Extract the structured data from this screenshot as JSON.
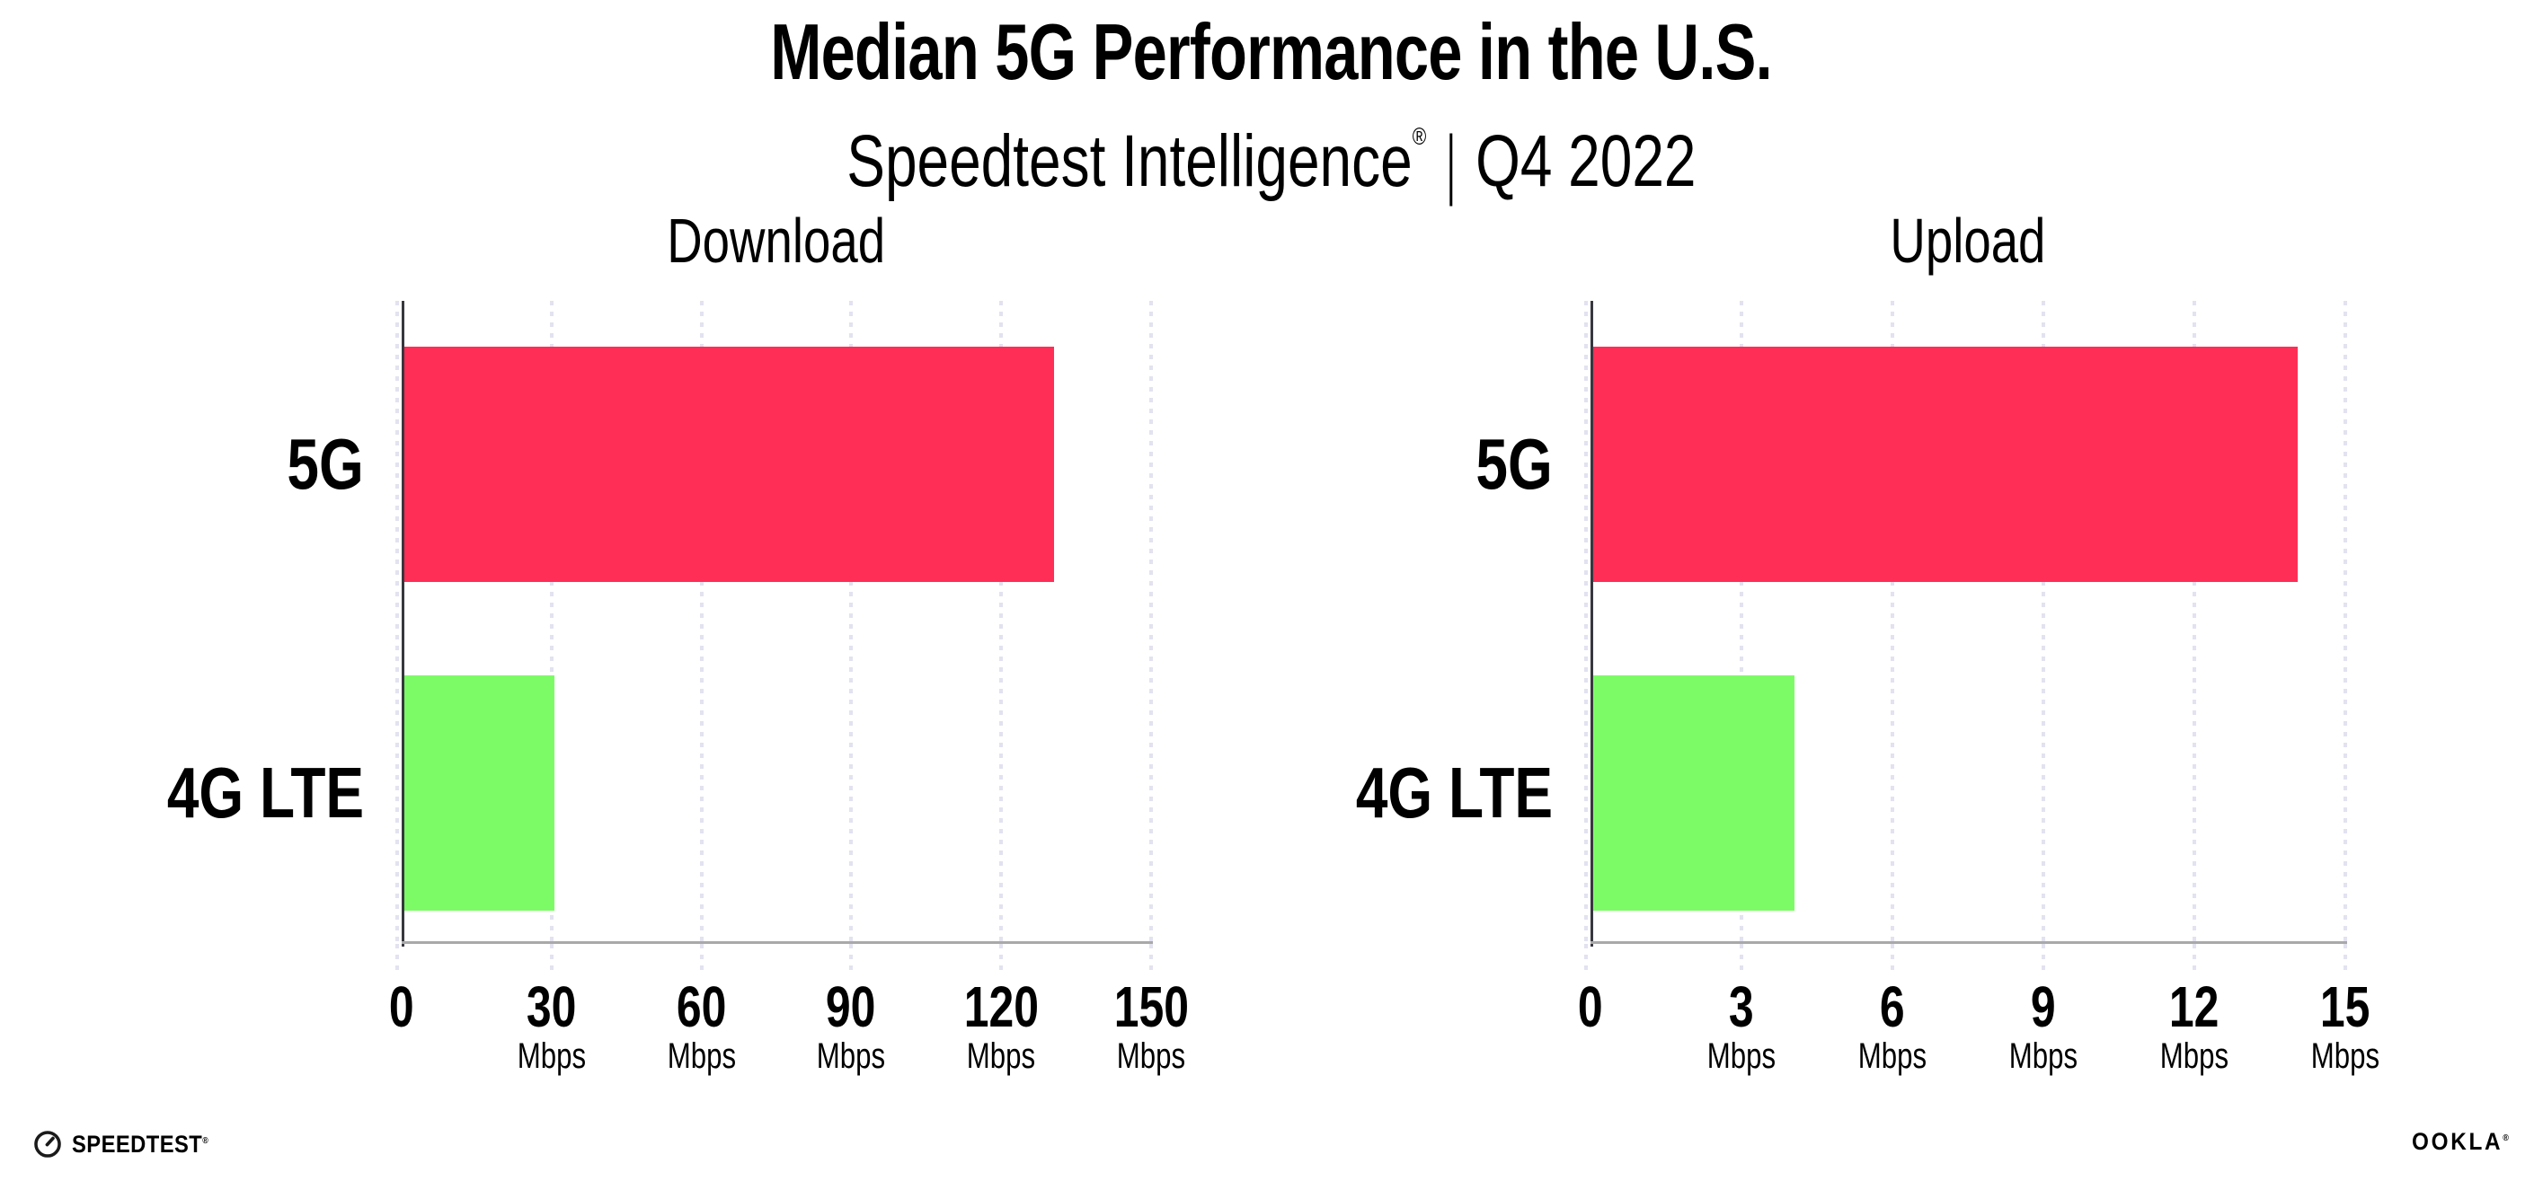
{
  "header": {
    "title": "Median 5G Performance in the U.S.",
    "subtitle_brand": "Speedtest Intelligence",
    "subtitle_reg": "®",
    "subtitle_separator": "|",
    "subtitle_period": "Q4 2022"
  },
  "chart_data": [
    {
      "type": "bar",
      "orientation": "horizontal",
      "title": "Download",
      "categories": [
        "5G",
        "4G LTE"
      ],
      "values": [
        130,
        30
      ],
      "unit": "Mbps",
      "xlabel": "",
      "xlim": [
        0,
        150
      ],
      "xticks": [
        0,
        30,
        60,
        90,
        120,
        150
      ],
      "grid": "vertical-dotted",
      "legend": "none",
      "bar_colors": [
        "#FF2E56",
        "#7DFB66"
      ]
    },
    {
      "type": "bar",
      "orientation": "horizontal",
      "title": "Upload",
      "categories": [
        "5G",
        "4G LTE"
      ],
      "values": [
        14,
        4
      ],
      "unit": "Mbps",
      "xlabel": "",
      "xlim": [
        0,
        15
      ],
      "xticks": [
        0,
        3,
        6,
        9,
        12,
        15
      ],
      "grid": "vertical-dotted",
      "legend": "none",
      "bar_colors": [
        "#FF2E56",
        "#7DFB66"
      ]
    }
  ],
  "footer": {
    "speedtest_label": "SPEEDTEST",
    "speedtest_reg": "®",
    "ookla_label": "OOKLA",
    "ookla_reg": "®"
  },
  "colors": {
    "bar_5g": "#FF2E56",
    "bar_4g_lte": "#7DFB66",
    "gridline_dots": "#E2E2F0",
    "x_axis_line": "#A9A9A9",
    "y_axis_line": "#37373F",
    "text": "#000000",
    "background": "#FFFFFF"
  }
}
